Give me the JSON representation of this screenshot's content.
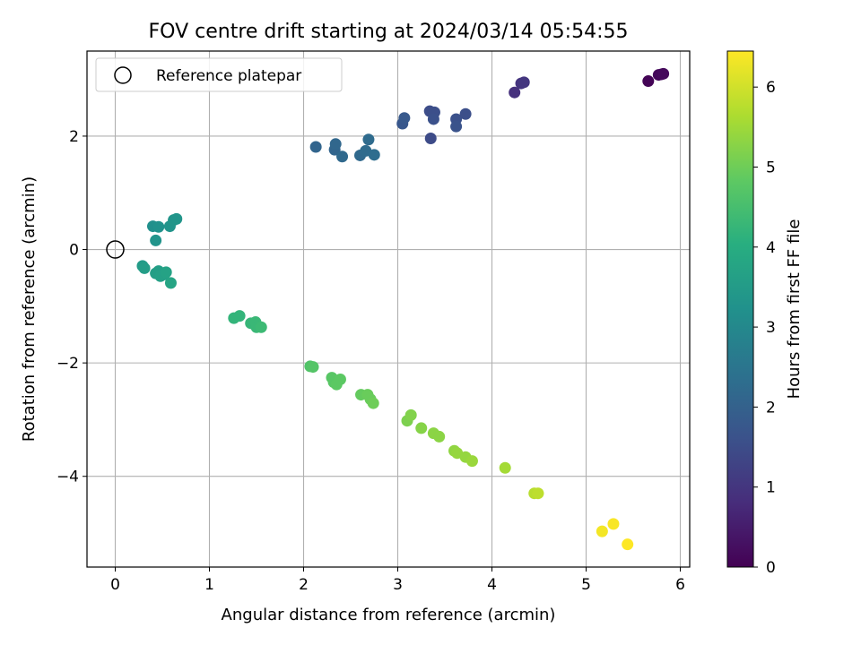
{
  "chart_data": {
    "type": "scatter",
    "title": "FOV centre drift starting at 2024/03/14 05:54:55",
    "xlabel": "Angular distance from reference (arcmin)",
    "ylabel": "Rotation from reference (arcmin)",
    "xlim": [
      -0.3,
      6.1
    ],
    "ylim": [
      -5.6,
      3.5
    ],
    "xticks": [
      0,
      1,
      2,
      3,
      4,
      5,
      6
    ],
    "xtick_labels": [
      "0",
      "1",
      "2",
      "3",
      "4",
      "5",
      "6"
    ],
    "yticks": [
      -4,
      -2,
      0,
      2
    ],
    "ytick_labels": [
      "−4",
      "−2",
      "0",
      "2"
    ],
    "grid": true,
    "legend": {
      "location": "upper left",
      "entries": [
        "Reference platepar"
      ]
    },
    "reference_point": {
      "name": "Reference platepar",
      "x": 0,
      "y": 0
    },
    "colorbar": {
      "label": "Hours from first FF file",
      "colormap": "viridis",
      "range": [
        0,
        6.45
      ],
      "ticks": [
        0,
        1,
        2,
        3,
        4,
        5,
        6
      ],
      "tick_labels": [
        "0",
        "1",
        "2",
        "3",
        "4",
        "5",
        "6"
      ]
    },
    "points": [
      {
        "x": 5.66,
        "y": 2.97,
        "c": 0.05
      },
      {
        "x": 5.77,
        "y": 3.08,
        "c": 0.1
      },
      {
        "x": 5.8,
        "y": 3.09,
        "c": 0.12
      },
      {
        "x": 5.82,
        "y": 3.1,
        "c": 0.15
      },
      {
        "x": 4.24,
        "y": 2.77,
        "c": 0.9
      },
      {
        "x": 4.31,
        "y": 2.93,
        "c": 0.95
      },
      {
        "x": 4.34,
        "y": 2.95,
        "c": 1.0
      },
      {
        "x": 3.35,
        "y": 1.96,
        "c": 1.45
      },
      {
        "x": 3.34,
        "y": 2.44,
        "c": 1.5
      },
      {
        "x": 3.39,
        "y": 2.42,
        "c": 1.55
      },
      {
        "x": 3.38,
        "y": 2.3,
        "c": 1.6
      },
      {
        "x": 3.62,
        "y": 2.3,
        "c": 1.6
      },
      {
        "x": 3.62,
        "y": 2.17,
        "c": 1.65
      },
      {
        "x": 3.72,
        "y": 2.39,
        "c": 1.55
      },
      {
        "x": 3.05,
        "y": 2.22,
        "c": 1.75
      },
      {
        "x": 3.07,
        "y": 2.32,
        "c": 1.8
      },
      {
        "x": 2.13,
        "y": 1.81,
        "c": 2.1
      },
      {
        "x": 2.33,
        "y": 1.76,
        "c": 2.1
      },
      {
        "x": 2.34,
        "y": 1.86,
        "c": 2.15
      },
      {
        "x": 2.41,
        "y": 1.64,
        "c": 2.2
      },
      {
        "x": 2.6,
        "y": 1.66,
        "c": 2.2
      },
      {
        "x": 2.66,
        "y": 1.74,
        "c": 2.25
      },
      {
        "x": 2.69,
        "y": 1.94,
        "c": 2.25
      },
      {
        "x": 2.75,
        "y": 1.67,
        "c": 2.3
      },
      {
        "x": 0.4,
        "y": 0.41,
        "c": 3.2
      },
      {
        "x": 0.46,
        "y": 0.4,
        "c": 3.25
      },
      {
        "x": 0.43,
        "y": 0.16,
        "c": 3.3
      },
      {
        "x": 0.58,
        "y": 0.41,
        "c": 3.3
      },
      {
        "x": 0.62,
        "y": 0.52,
        "c": 3.35
      },
      {
        "x": 0.65,
        "y": 0.54,
        "c": 3.35
      },
      {
        "x": 0.29,
        "y": -0.29,
        "c": 3.5
      },
      {
        "x": 0.31,
        "y": -0.33,
        "c": 3.55
      },
      {
        "x": 0.43,
        "y": -0.42,
        "c": 3.6
      },
      {
        "x": 0.46,
        "y": -0.38,
        "c": 3.6
      },
      {
        "x": 0.48,
        "y": -0.47,
        "c": 3.65
      },
      {
        "x": 0.52,
        "y": -0.44,
        "c": 3.65
      },
      {
        "x": 0.54,
        "y": -0.4,
        "c": 3.7
      },
      {
        "x": 0.59,
        "y": -0.59,
        "c": 3.75
      },
      {
        "x": 1.26,
        "y": -1.21,
        "c": 4.2
      },
      {
        "x": 1.32,
        "y": -1.17,
        "c": 4.2
      },
      {
        "x": 1.44,
        "y": -1.3,
        "c": 4.25
      },
      {
        "x": 1.49,
        "y": -1.28,
        "c": 4.3
      },
      {
        "x": 1.5,
        "y": -1.37,
        "c": 4.3
      },
      {
        "x": 1.55,
        "y": -1.37,
        "c": 4.35
      },
      {
        "x": 2.07,
        "y": -2.06,
        "c": 4.65
      },
      {
        "x": 2.1,
        "y": -2.07,
        "c": 4.7
      },
      {
        "x": 2.3,
        "y": -2.26,
        "c": 4.75
      },
      {
        "x": 2.32,
        "y": -2.34,
        "c": 4.75
      },
      {
        "x": 2.35,
        "y": -2.38,
        "c": 4.8
      },
      {
        "x": 2.39,
        "y": -2.29,
        "c": 4.8
      },
      {
        "x": 2.61,
        "y": -2.56,
        "c": 4.9
      },
      {
        "x": 2.68,
        "y": -2.56,
        "c": 4.95
      },
      {
        "x": 2.71,
        "y": -2.64,
        "c": 4.95
      },
      {
        "x": 2.74,
        "y": -2.71,
        "c": 5.0
      },
      {
        "x": 3.1,
        "y": -3.02,
        "c": 5.15
      },
      {
        "x": 3.14,
        "y": -2.92,
        "c": 5.2
      },
      {
        "x": 3.25,
        "y": -3.15,
        "c": 5.25
      },
      {
        "x": 3.38,
        "y": -3.24,
        "c": 5.3
      },
      {
        "x": 3.44,
        "y": -3.3,
        "c": 5.3
      },
      {
        "x": 3.6,
        "y": -3.55,
        "c": 5.35
      },
      {
        "x": 3.63,
        "y": -3.59,
        "c": 5.4
      },
      {
        "x": 3.72,
        "y": -3.66,
        "c": 5.4
      },
      {
        "x": 3.79,
        "y": -3.73,
        "c": 5.45
      },
      {
        "x": 4.14,
        "y": -3.85,
        "c": 5.55
      },
      {
        "x": 4.45,
        "y": -4.3,
        "c": 5.75
      },
      {
        "x": 4.49,
        "y": -4.3,
        "c": 5.8
      },
      {
        "x": 5.17,
        "y": -4.97,
        "c": 6.35
      },
      {
        "x": 5.29,
        "y": -4.84,
        "c": 6.4
      },
      {
        "x": 5.44,
        "y": -5.2,
        "c": 6.45
      }
    ]
  }
}
